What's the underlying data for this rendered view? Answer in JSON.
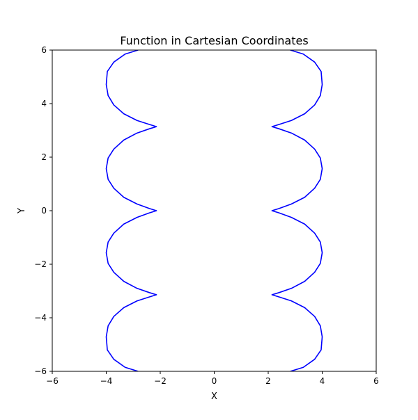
{
  "chart_data": {
    "type": "line",
    "title": "Function in Cartesian Coordinates",
    "xlabel": "X",
    "ylabel": "Y",
    "xlim": [
      -6,
      6
    ],
    "ylim": [
      -6,
      6
    ],
    "xticks": [
      -6,
      -4,
      -2,
      0,
      2,
      4,
      6
    ],
    "yticks": [
      -6,
      -4,
      -2,
      0,
      2,
      4,
      6
    ],
    "xtick_labels": [
      "−6",
      "−4",
      "−2",
      "0",
      "2",
      "4",
      "6"
    ],
    "ytick_labels": [
      "−6",
      "−4",
      "−2",
      "0",
      "2",
      "4",
      "6"
    ],
    "grid": false,
    "line_color": "#0000ff",
    "series": [
      {
        "points": [
          [
            2.82,
            6.0
          ],
          [
            3.3,
            5.85
          ],
          [
            3.72,
            5.55
          ],
          [
            3.96,
            5.2
          ],
          [
            4.0,
            4.71
          ],
          [
            3.93,
            4.3
          ],
          [
            3.72,
            3.95
          ],
          [
            3.35,
            3.62
          ],
          [
            2.86,
            3.37
          ],
          [
            2.4,
            3.22
          ],
          [
            2.14,
            3.14
          ],
          [
            2.4,
            3.06
          ],
          [
            2.86,
            2.9
          ],
          [
            3.35,
            2.64
          ],
          [
            3.72,
            2.3
          ],
          [
            3.93,
            1.97
          ],
          [
            4.0,
            1.57
          ],
          [
            3.93,
            1.17
          ],
          [
            3.72,
            0.84
          ],
          [
            3.35,
            0.5
          ],
          [
            2.86,
            0.25
          ],
          [
            2.4,
            0.08
          ],
          [
            2.14,
            0.0
          ],
          [
            2.4,
            -0.08
          ],
          [
            2.86,
            -0.25
          ],
          [
            3.35,
            -0.5
          ],
          [
            3.72,
            -0.84
          ],
          [
            3.93,
            -1.17
          ],
          [
            4.0,
            -1.57
          ],
          [
            3.93,
            -1.97
          ],
          [
            3.72,
            -2.3
          ],
          [
            3.35,
            -2.64
          ],
          [
            2.86,
            -2.9
          ],
          [
            2.4,
            -3.06
          ],
          [
            2.14,
            -3.14
          ],
          [
            2.4,
            -3.22
          ],
          [
            2.86,
            -3.37
          ],
          [
            3.35,
            -3.62
          ],
          [
            3.72,
            -3.95
          ],
          [
            3.93,
            -4.3
          ],
          [
            4.0,
            -4.71
          ],
          [
            3.96,
            -5.2
          ],
          [
            3.72,
            -5.55
          ],
          [
            3.3,
            -5.85
          ],
          [
            2.82,
            -6.0
          ]
        ]
      },
      {
        "points": [
          [
            -2.82,
            6.0
          ],
          [
            -3.3,
            5.85
          ],
          [
            -3.72,
            5.55
          ],
          [
            -3.96,
            5.2
          ],
          [
            -4.0,
            4.71
          ],
          [
            -3.93,
            4.3
          ],
          [
            -3.72,
            3.95
          ],
          [
            -3.35,
            3.62
          ],
          [
            -2.86,
            3.37
          ],
          [
            -2.4,
            3.22
          ],
          [
            -2.14,
            3.14
          ],
          [
            -2.4,
            3.06
          ],
          [
            -2.86,
            2.9
          ],
          [
            -3.35,
            2.64
          ],
          [
            -3.72,
            2.3
          ],
          [
            -3.93,
            1.97
          ],
          [
            -4.0,
            1.57
          ],
          [
            -3.93,
            1.17
          ],
          [
            -3.72,
            0.84
          ],
          [
            -3.35,
            0.5
          ],
          [
            -2.86,
            0.25
          ],
          [
            -2.4,
            0.08
          ],
          [
            -2.14,
            0.0
          ],
          [
            -2.4,
            -0.08
          ],
          [
            -2.86,
            -0.25
          ],
          [
            -3.35,
            -0.5
          ],
          [
            -3.72,
            -0.84
          ],
          [
            -3.93,
            -1.17
          ],
          [
            -4.0,
            -1.57
          ],
          [
            -3.93,
            -1.97
          ],
          [
            -3.72,
            -2.3
          ],
          [
            -3.35,
            -2.64
          ],
          [
            -2.86,
            -2.9
          ],
          [
            -2.4,
            -3.06
          ],
          [
            -2.14,
            -3.14
          ],
          [
            -2.4,
            -3.22
          ],
          [
            -2.86,
            -3.37
          ],
          [
            -3.35,
            -3.62
          ],
          [
            -3.72,
            -3.95
          ],
          [
            -3.93,
            -4.3
          ],
          [
            -4.0,
            -4.71
          ],
          [
            -3.96,
            -5.2
          ],
          [
            -3.72,
            -5.55
          ],
          [
            -3.3,
            -5.85
          ],
          [
            -2.82,
            -6.0
          ]
        ]
      }
    ]
  }
}
